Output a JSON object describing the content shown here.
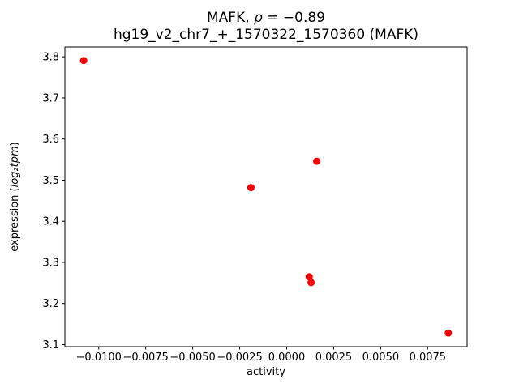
{
  "figure": {
    "title1_parts": [
      "MAFK, ",
      "ρ",
      " = −0.89"
    ],
    "title_line2": "hg19_v2_chr7_+_1570322_1570360 (MAFK)",
    "xlabel": "activity",
    "ylabel_parts": [
      "expression (",
      "log₂tpm",
      ")"
    ]
  },
  "chart_data": {
    "type": "scatter",
    "title": "MAFK, ρ = −0.89",
    "subtitle": "hg19_v2_chr7_+_1570322_1570360 (MAFK)",
    "xlabel": "activity",
    "ylabel": "expression (log2 tpm)",
    "grid": false,
    "legend_position": "none",
    "marker_color": "#ff0000",
    "marker_radius": 4.5,
    "xlim": [
      -0.0118,
      0.0096
    ],
    "ylim": [
      3.095,
      3.824
    ],
    "xticks": [
      {
        "value": -0.01,
        "label": "−0.0100"
      },
      {
        "value": -0.0075,
        "label": "−0.0075"
      },
      {
        "value": -0.005,
        "label": "−0.0050"
      },
      {
        "value": -0.0025,
        "label": "−0.0025"
      },
      {
        "value": 0.0,
        "label": "0.0000"
      },
      {
        "value": 0.0025,
        "label": "0.0025"
      },
      {
        "value": 0.005,
        "label": "0.0050"
      },
      {
        "value": 0.0075,
        "label": "0.0075"
      }
    ],
    "yticks": [
      {
        "value": 3.1,
        "label": "3.1"
      },
      {
        "value": 3.2,
        "label": "3.2"
      },
      {
        "value": 3.3,
        "label": "3.3"
      },
      {
        "value": 3.4,
        "label": "3.4"
      },
      {
        "value": 3.5,
        "label": "3.5"
      },
      {
        "value": 3.6,
        "label": "3.6"
      },
      {
        "value": 3.7,
        "label": "3.7"
      },
      {
        "value": 3.8,
        "label": "3.8"
      }
    ],
    "points": [
      {
        "x": -0.0108,
        "y": 3.791
      },
      {
        "x": -0.0019,
        "y": 3.482
      },
      {
        "x": 0.0016,
        "y": 3.546
      },
      {
        "x": 0.0012,
        "y": 3.265
      },
      {
        "x": 0.0013,
        "y": 3.251
      },
      {
        "x": 0.0086,
        "y": 3.128
      }
    ]
  }
}
